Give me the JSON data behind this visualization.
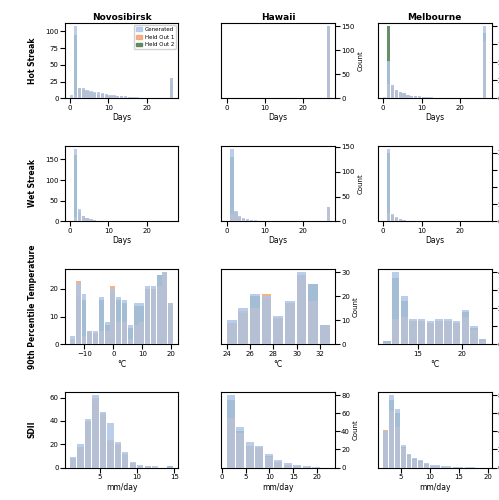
{
  "title_cols": [
    "Novosibirsk",
    "Hawaii",
    "Melbourne"
  ],
  "row_labels": [
    "Hot Streak",
    "Wet Streak",
    "90th Percentile Temperature",
    "SDII"
  ],
  "legend_labels": [
    "Generated",
    "Held Out 1",
    "Held Out 2"
  ],
  "colors": [
    "#aec6e8",
    "#f4a570",
    "#4e7c4e"
  ],
  "rows": {
    "hot_streak": {
      "xlabel": "Days",
      "subplots": [
        {
          "bins": [
            0,
            1,
            2,
            3,
            4,
            5,
            6,
            7,
            8,
            9,
            10,
            11,
            12,
            13,
            14,
            15,
            16,
            17,
            18,
            19,
            20,
            21,
            22,
            23,
            24,
            25,
            26
          ],
          "gen": [
            5,
            108,
            16,
            15,
            13,
            11,
            10,
            9,
            8,
            7,
            5,
            5,
            4,
            3,
            3,
            2,
            2,
            2,
            1,
            1,
            1,
            1,
            1,
            1,
            0,
            0,
            30
          ],
          "hold1": [
            1,
            5,
            15,
            14,
            11,
            10,
            8,
            7,
            6,
            5,
            4,
            4,
            3,
            3,
            2,
            2,
            2,
            1,
            1,
            1,
            1,
            0,
            0,
            0,
            0,
            0,
            30
          ],
          "hold2": [
            1,
            95,
            14,
            13,
            11,
            10,
            8,
            7,
            6,
            5,
            4,
            3,
            3,
            2,
            2,
            2,
            1,
            1,
            1,
            1,
            1,
            1,
            1,
            0,
            0,
            0,
            25
          ]
        },
        {
          "bins": [
            0,
            1,
            2,
            3,
            4,
            5,
            6,
            7,
            8,
            9,
            10,
            11,
            12,
            13,
            14,
            15,
            16,
            17,
            18,
            19,
            20,
            21,
            22,
            23,
            24,
            25,
            26
          ],
          "gen": [
            0,
            0,
            0,
            0,
            0,
            0,
            0,
            0,
            0,
            0,
            0,
            0,
            0,
            0,
            0,
            0,
            0,
            0,
            0,
            0,
            0,
            0,
            0,
            0,
            0,
            0,
            150
          ],
          "hold1": [
            0,
            0,
            0,
            0,
            0,
            0,
            0,
            0,
            0,
            0,
            0,
            0,
            0,
            0,
            0,
            0,
            0,
            0,
            0,
            0,
            0,
            0,
            0,
            0,
            0,
            0,
            150
          ],
          "hold2": [
            0,
            0,
            0,
            0,
            0,
            0,
            0,
            0,
            0,
            0,
            0,
            0,
            0,
            0,
            0,
            0,
            0,
            0,
            0,
            0,
            0,
            0,
            0,
            0,
            0,
            0,
            150
          ]
        },
        {
          "bins": [
            0,
            1,
            2,
            3,
            4,
            5,
            6,
            7,
            8,
            9,
            10,
            11,
            12,
            13,
            14,
            15,
            16,
            17,
            18,
            19,
            20,
            21,
            22,
            23,
            24,
            25,
            26
          ],
          "gen": [
            2,
            52,
            18,
            12,
            9,
            7,
            5,
            4,
            3,
            3,
            2,
            2,
            2,
            1,
            1,
            1,
            1,
            1,
            1,
            0,
            0,
            0,
            0,
            0,
            0,
            0,
            100
          ],
          "hold1": [
            1,
            20,
            18,
            12,
            9,
            7,
            5,
            4,
            3,
            2,
            2,
            2,
            1,
            1,
            1,
            1,
            1,
            0,
            0,
            0,
            0,
            0,
            0,
            0,
            0,
            0,
            80
          ],
          "hold2": [
            1,
            100,
            15,
            10,
            8,
            6,
            5,
            4,
            3,
            2,
            2,
            2,
            1,
            1,
            1,
            1,
            0,
            0,
            0,
            0,
            0,
            0,
            0,
            0,
            0,
            0,
            90
          ]
        }
      ]
    },
    "wet_streak": {
      "xlabel": "Days",
      "subplots": [
        {
          "bins": [
            0,
            1,
            2,
            3,
            4,
            5,
            6,
            7,
            8,
            9,
            10,
            11,
            12,
            13,
            14,
            15,
            16,
            17,
            18,
            19,
            20,
            21,
            22,
            23,
            24,
            25,
            26
          ],
          "gen": [
            1,
            175,
            30,
            14,
            9,
            5,
            3,
            2,
            2,
            1,
            1,
            1,
            1,
            0,
            0,
            0,
            0,
            0,
            0,
            0,
            0,
            0,
            0,
            0,
            0,
            0,
            0
          ],
          "hold1": [
            1,
            10,
            25,
            12,
            8,
            5,
            3,
            2,
            2,
            1,
            1,
            1,
            0,
            0,
            0,
            0,
            0,
            0,
            0,
            0,
            0,
            0,
            0,
            0,
            0,
            0,
            0
          ],
          "hold2": [
            1,
            160,
            25,
            12,
            8,
            5,
            3,
            2,
            2,
            1,
            1,
            1,
            0,
            0,
            0,
            0,
            0,
            0,
            0,
            0,
            0,
            0,
            0,
            0,
            0,
            0,
            0
          ]
        },
        {
          "bins": [
            0,
            1,
            2,
            3,
            4,
            5,
            6,
            7,
            8,
            9,
            10,
            11,
            12,
            13,
            14,
            15,
            16,
            17,
            18,
            19,
            20,
            21,
            22,
            23,
            24,
            25,
            26
          ],
          "gen": [
            1,
            145,
            20,
            10,
            6,
            4,
            2,
            2,
            1,
            1,
            1,
            0,
            0,
            0,
            0,
            0,
            0,
            0,
            0,
            0,
            0,
            0,
            0,
            0,
            0,
            0,
            28
          ],
          "hold1": [
            1,
            15,
            18,
            9,
            5,
            3,
            2,
            1,
            1,
            1,
            0,
            0,
            0,
            0,
            0,
            0,
            0,
            0,
            0,
            0,
            0,
            0,
            0,
            0,
            0,
            0,
            28
          ],
          "hold2": [
            1,
            130,
            18,
            9,
            5,
            3,
            2,
            1,
            1,
            1,
            0,
            0,
            0,
            0,
            0,
            0,
            0,
            0,
            0,
            0,
            0,
            0,
            0,
            0,
            0,
            0,
            0
          ]
        },
        {
          "bins": [
            0,
            1,
            2,
            3,
            4,
            5,
            6,
            7,
            8,
            9,
            10,
            11,
            12,
            13,
            14,
            15,
            16,
            17,
            18,
            19,
            20,
            21,
            22,
            23,
            24,
            25,
            26
          ],
          "gen": [
            1,
            210,
            22,
            12,
            7,
            4,
            2,
            2,
            1,
            1,
            0,
            0,
            0,
            0,
            0,
            0,
            0,
            0,
            0,
            0,
            0,
            0,
            0,
            0,
            0,
            0,
            0
          ],
          "hold1": [
            1,
            25,
            20,
            10,
            6,
            3,
            2,
            1,
            1,
            1,
            0,
            0,
            0,
            0,
            0,
            0,
            0,
            0,
            0,
            0,
            0,
            0,
            0,
            0,
            0,
            0,
            0
          ],
          "hold2": [
            1,
            200,
            20,
            10,
            6,
            3,
            2,
            1,
            1,
            1,
            0,
            0,
            0,
            0,
            0,
            0,
            0,
            0,
            0,
            0,
            0,
            0,
            0,
            0,
            0,
            0,
            0
          ]
        }
      ]
    },
    "percentile_temp": {
      "xlabel": "°C",
      "subplots": [
        {
          "bins": [
            -15,
            -13,
            -11,
            -9,
            -7,
            -5,
            -3,
            -1,
            1,
            3,
            5,
            7,
            9,
            11,
            13,
            15,
            17,
            19
          ],
          "gen": [
            3,
            22,
            18,
            5,
            5,
            17,
            8,
            20,
            17,
            16,
            7,
            15,
            15,
            21,
            21,
            25,
            26,
            15
          ],
          "hold1": [
            2,
            23,
            3,
            5,
            4,
            5,
            5,
            21,
            8,
            8,
            2,
            7,
            8,
            20,
            20,
            21,
            26,
            15
          ],
          "hold2": [
            1,
            17,
            16,
            4,
            4,
            16,
            7,
            19,
            16,
            15,
            6,
            14,
            14,
            20,
            20,
            25,
            25,
            14
          ]
        },
        {
          "bins": [
            24,
            25,
            26,
            27,
            28,
            29,
            30,
            31,
            32
          ],
          "gen": [
            10,
            15,
            21,
            20,
            12,
            18,
            30,
            25,
            8
          ],
          "hold1": [
            9,
            14,
            15,
            21,
            11,
            17,
            29,
            18,
            8
          ],
          "hold2": [
            9,
            13,
            20,
            19,
            11,
            17,
            29,
            25,
            8
          ]
        },
        {
          "bins": [
            11,
            12,
            13,
            14,
            15,
            16,
            17,
            18,
            19,
            20,
            21,
            22
          ],
          "gen": [
            2,
            40,
            27,
            14,
            14,
            13,
            14,
            14,
            13,
            19,
            10,
            3
          ],
          "hold1": [
            1,
            14,
            15,
            13,
            13,
            12,
            13,
            13,
            12,
            15,
            8,
            3
          ],
          "hold2": [
            2,
            37,
            24,
            13,
            13,
            12,
            13,
            13,
            12,
            18,
            9,
            3
          ]
        }
      ]
    },
    "sdii": {
      "xlabel": "mm/day",
      "subplots": [
        {
          "bins": [
            1,
            2,
            3,
            4,
            5,
            6,
            7,
            8,
            9,
            10,
            11,
            12,
            13,
            14
          ],
          "gen": [
            9,
            20,
            42,
            62,
            48,
            38,
            22,
            13,
            5,
            2,
            1,
            1,
            0,
            1
          ],
          "hold1": [
            8,
            18,
            40,
            60,
            47,
            24,
            20,
            12,
            4,
            1,
            1,
            0,
            0,
            0
          ],
          "hold2": [
            8,
            18,
            39,
            57,
            45,
            23,
            19,
            12,
            4,
            1,
            1,
            0,
            0,
            1
          ]
        },
        {
          "bins": [
            1,
            3,
            5,
            7,
            9,
            11,
            13,
            15,
            17,
            19,
            21
          ],
          "gen": [
            80,
            45,
            28,
            24,
            15,
            8,
            5,
            3,
            2,
            1,
            0
          ],
          "hold1": [
            55,
            38,
            24,
            23,
            12,
            6,
            3,
            2,
            1,
            0,
            0
          ],
          "hold2": [
            75,
            40,
            24,
            22,
            13,
            6,
            3,
            2,
            1,
            0,
            0
          ]
        },
        {
          "bins": [
            2,
            3,
            4,
            5,
            6,
            7,
            8,
            9,
            10,
            12,
            14,
            16,
            18
          ],
          "gen": [
            40,
            80,
            65,
            25,
            15,
            10,
            8,
            5,
            3,
            2,
            1,
            1,
            0
          ],
          "hold1": [
            42,
            62,
            45,
            22,
            13,
            8,
            6,
            4,
            2,
            1,
            1,
            0,
            0
          ],
          "hold2": [
            40,
            75,
            60,
            23,
            14,
            9,
            7,
            4,
            2,
            1,
            1,
            0,
            0
          ]
        }
      ]
    }
  }
}
